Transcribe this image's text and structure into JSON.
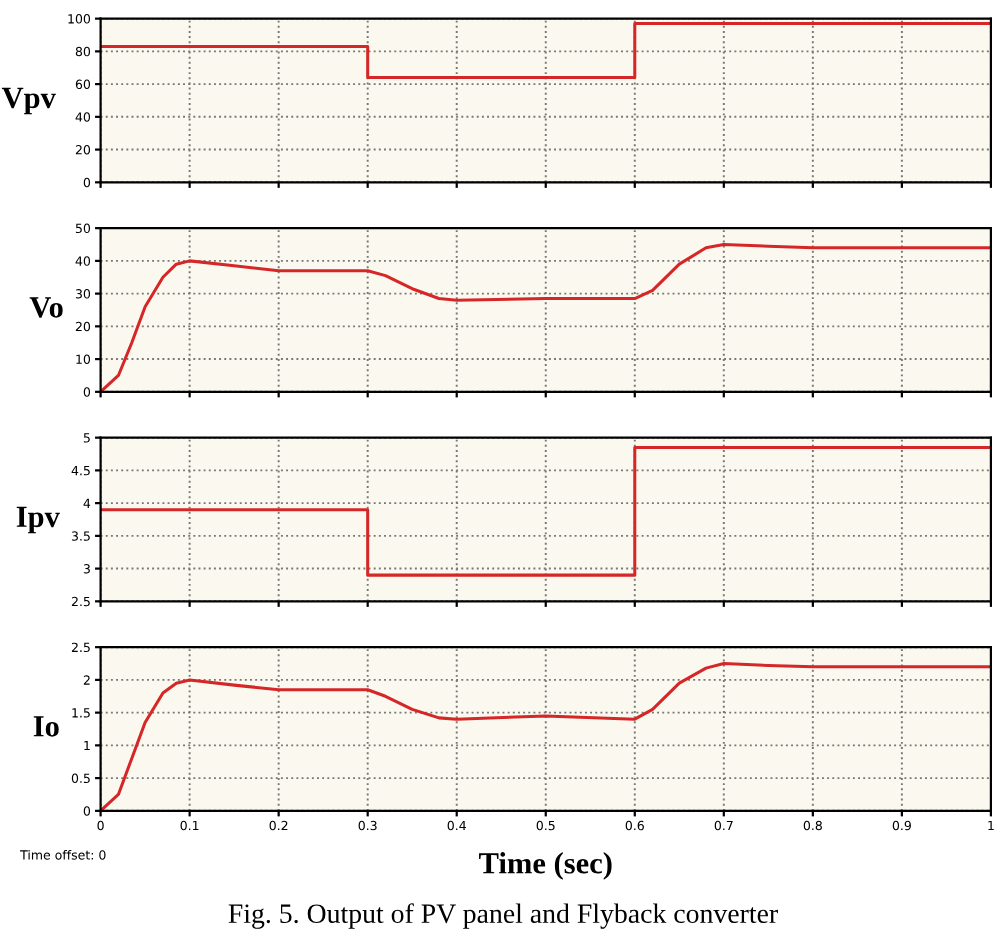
{
  "chart_data": [
    {
      "type": "step",
      "ylabel": "Vpv",
      "series": [
        {
          "color": "#d62728",
          "x": [
            0,
            0.3,
            0.6,
            1
          ],
          "values": [
            83,
            64,
            97,
            97
          ]
        }
      ],
      "xlim": [
        0,
        1
      ],
      "xticks": [
        0,
        0.1,
        0.2,
        0.3,
        0.4,
        0.5,
        0.6,
        0.7,
        0.8,
        0.9,
        1
      ],
      "ylim": [
        0,
        100
      ],
      "yticks": [
        0,
        20,
        40,
        60,
        80,
        100
      ],
      "grid": true,
      "tick_labels": "y"
    },
    {
      "type": "line",
      "ylabel": "Vo",
      "series": [
        {
          "color": "#d62728",
          "x": [
            0,
            0.02,
            0.035,
            0.05,
            0.07,
            0.085,
            0.1,
            0.15,
            0.2,
            0.3,
            0.32,
            0.35,
            0.38,
            0.4,
            0.5,
            0.6,
            0.62,
            0.65,
            0.68,
            0.7,
            0.75,
            0.8,
            1
          ],
          "values": [
            0,
            5,
            15,
            26,
            35,
            39,
            40,
            38.5,
            37,
            37,
            35.5,
            31.5,
            28.5,
            28,
            28.5,
            28.5,
            31,
            39,
            44,
            45,
            44.5,
            44,
            44
          ]
        }
      ],
      "xlim": [
        0,
        1
      ],
      "xticks": [
        0,
        0.1,
        0.2,
        0.3,
        0.4,
        0.5,
        0.6,
        0.7,
        0.8,
        0.9,
        1
      ],
      "ylim": [
        0,
        50
      ],
      "yticks": [
        0,
        10,
        20,
        30,
        40,
        50
      ],
      "grid": true,
      "tick_labels": "y"
    },
    {
      "type": "step",
      "ylabel": "Ipv",
      "series": [
        {
          "color": "#d62728",
          "x": [
            0,
            0.3,
            0.6,
            1
          ],
          "values": [
            3.9,
            2.9,
            4.85,
            4.85
          ]
        }
      ],
      "xlim": [
        0,
        1
      ],
      "xticks": [
        0,
        0.1,
        0.2,
        0.3,
        0.4,
        0.5,
        0.6,
        0.7,
        0.8,
        0.9,
        1
      ],
      "ylim": [
        2.5,
        5
      ],
      "yticks": [
        2.5,
        3,
        3.5,
        4,
        4.5,
        5
      ],
      "grid": true,
      "tick_labels": "y"
    },
    {
      "type": "line",
      "ylabel": "Io",
      "xlabel": "Time (sec)",
      "series": [
        {
          "color": "#d62728",
          "x": [
            0,
            0.02,
            0.035,
            0.05,
            0.07,
            0.085,
            0.1,
            0.15,
            0.2,
            0.3,
            0.32,
            0.35,
            0.38,
            0.4,
            0.5,
            0.6,
            0.62,
            0.65,
            0.68,
            0.7,
            0.75,
            0.8,
            1
          ],
          "values": [
            0,
            0.25,
            0.8,
            1.35,
            1.8,
            1.95,
            2.0,
            1.92,
            1.85,
            1.85,
            1.75,
            1.55,
            1.42,
            1.4,
            1.45,
            1.4,
            1.55,
            1.95,
            2.18,
            2.25,
            2.22,
            2.2,
            2.2
          ]
        }
      ],
      "xlim": [
        0,
        1
      ],
      "xticks": [
        0,
        0.1,
        0.2,
        0.3,
        0.4,
        0.5,
        0.6,
        0.7,
        0.8,
        0.9,
        1
      ],
      "ylim": [
        0,
        2.5
      ],
      "yticks": [
        0,
        0.5,
        1,
        1.5,
        2,
        2.5
      ],
      "grid": true,
      "annotations": [
        "Time offset: 0",
        "Fig. 5. Output of PV panel and Flyback converter"
      ]
    }
  ]
}
